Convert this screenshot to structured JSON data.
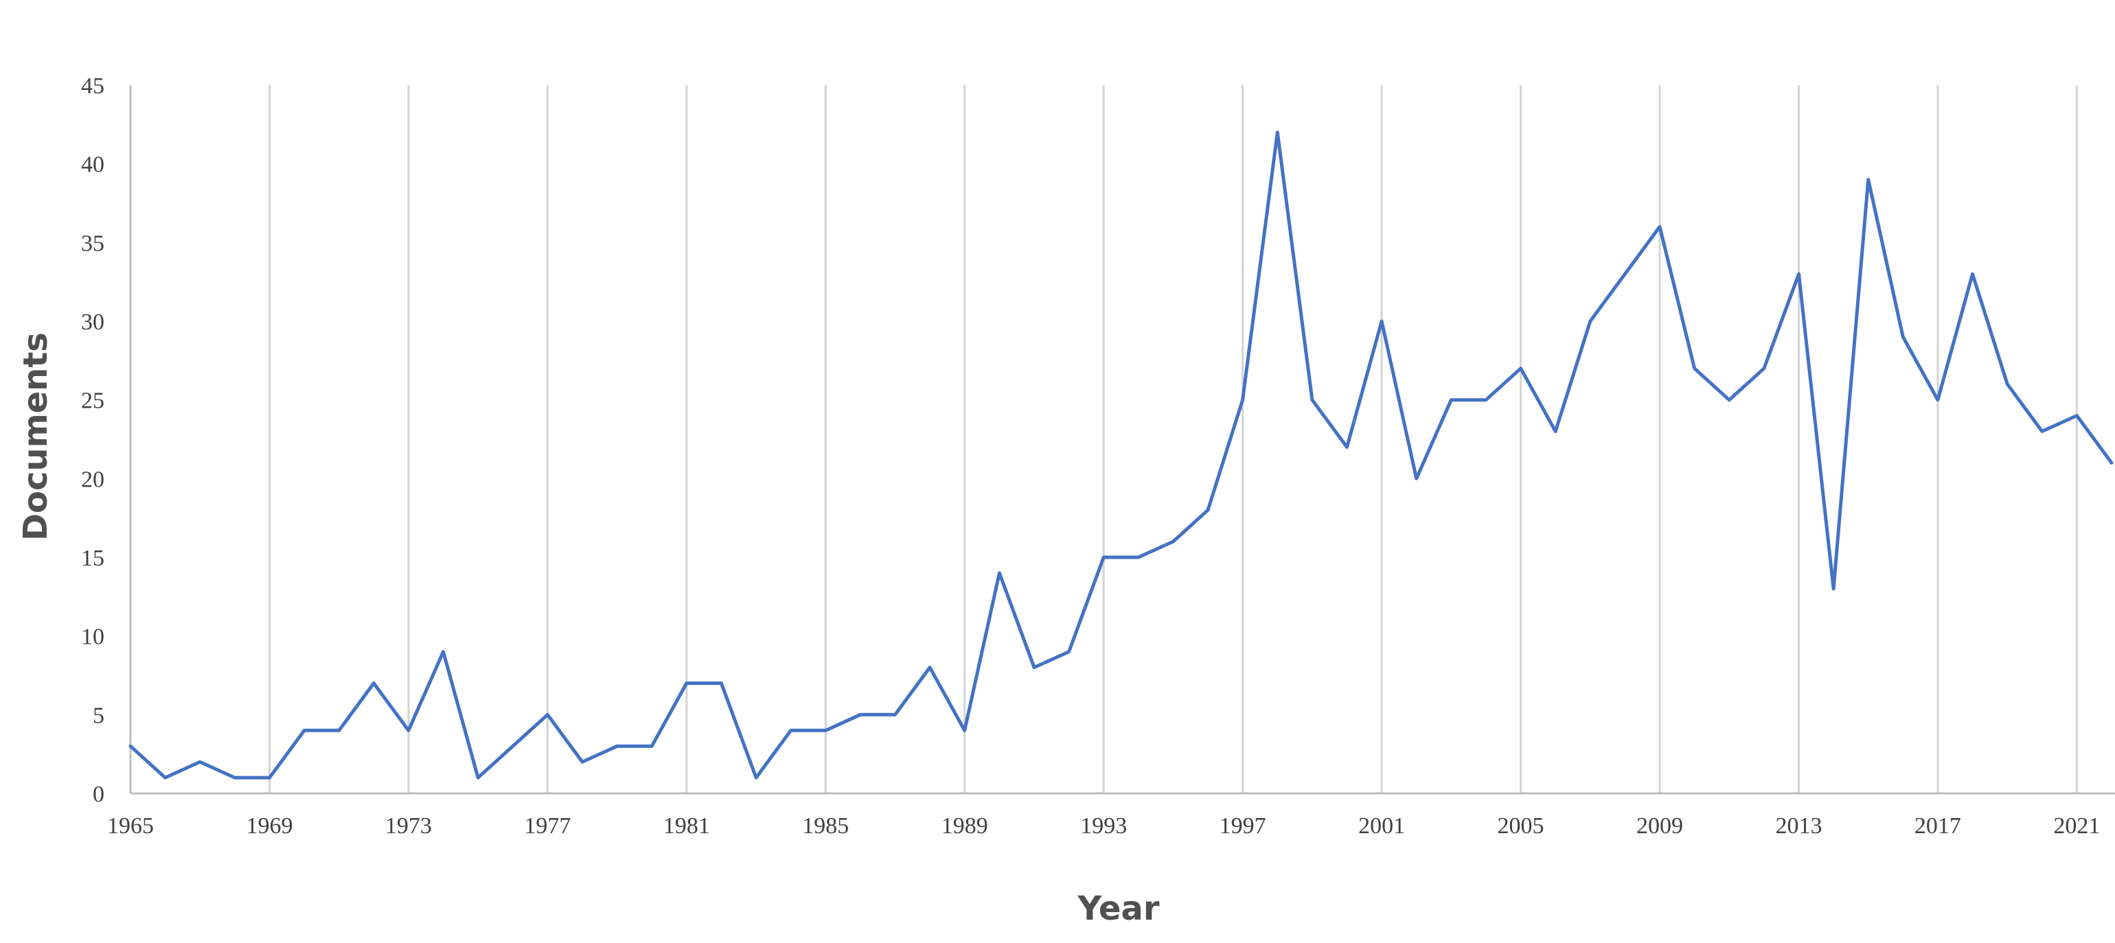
{
  "chart_data": {
    "type": "line",
    "title": "",
    "xlabel": "Year",
    "ylabel": "Documents",
    "ylim": [
      0,
      45
    ],
    "xlim": [
      1965,
      2022
    ],
    "y_ticks": [
      0,
      5,
      10,
      15,
      20,
      25,
      30,
      35,
      40,
      45
    ],
    "x_ticks": [
      1965,
      1969,
      1973,
      1977,
      1981,
      1985,
      1989,
      1993,
      1997,
      2001,
      2005,
      2009,
      2013,
      2017,
      2021
    ],
    "grid": "vertical",
    "legend": "none",
    "line_color": "#4472C4",
    "x": [
      1965,
      1966,
      1967,
      1968,
      1969,
      1970,
      1971,
      1972,
      1973,
      1974,
      1975,
      1976,
      1977,
      1978,
      1979,
      1980,
      1981,
      1982,
      1983,
      1984,
      1985,
      1986,
      1987,
      1988,
      1989,
      1990,
      1991,
      1992,
      1993,
      1994,
      1995,
      1996,
      1997,
      1998,
      1999,
      2000,
      2001,
      2002,
      2003,
      2004,
      2005,
      2006,
      2007,
      2008,
      2009,
      2010,
      2011,
      2012,
      2013,
      2014,
      2015,
      2016,
      2017,
      2018,
      2019,
      2020,
      2021,
      2022
    ],
    "series": [
      {
        "values": [
          3,
          1,
          2,
          1,
          1,
          4,
          4,
          7,
          4,
          9,
          1,
          3,
          5,
          2,
          3,
          3,
          7,
          7,
          1,
          4,
          4,
          5,
          5,
          8,
          4,
          14,
          8,
          9,
          15,
          15,
          16,
          18,
          25,
          42,
          25,
          22,
          30,
          20,
          25,
          25,
          27,
          23,
          30,
          33,
          36,
          27,
          25,
          27,
          33,
          13,
          39,
          29,
          25,
          33,
          26,
          23,
          24,
          21
        ]
      }
    ]
  }
}
